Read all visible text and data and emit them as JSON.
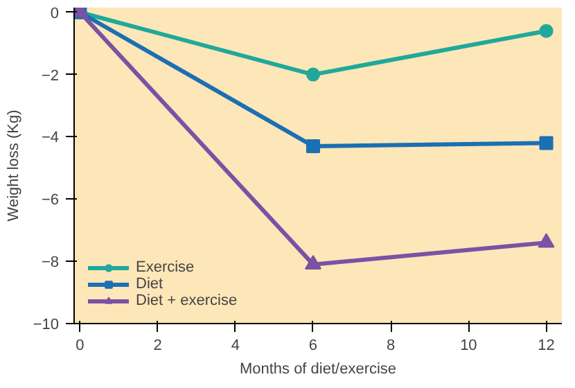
{
  "chart_data": {
    "type": "line",
    "xlabel": "Months of diet/exercise",
    "ylabel": "Weight loss (Kg)",
    "x": [
      0,
      6,
      12
    ],
    "series": [
      {
        "name": "Exercise",
        "color": "#20a89a",
        "values": [
          0,
          -2,
          -0.6
        ],
        "marker": "circle"
      },
      {
        "name": "Diet",
        "color": "#1b6fb3",
        "values": [
          0,
          -4.3,
          -4.2
        ],
        "marker": "square"
      },
      {
        "name": "Diet + exercise",
        "color": "#7a52a3",
        "values": [
          0,
          -8.1,
          -7.4
        ],
        "marker": "triangle"
      }
    ],
    "xlim": [
      -0.15,
      12.4
    ],
    "ylim": [
      -10,
      0.15
    ],
    "xticks": [
      0,
      2,
      4,
      6,
      8,
      10,
      12
    ],
    "yticks": [
      {
        "value": 0,
        "label": "0"
      },
      {
        "value": -2,
        "label": "−2"
      },
      {
        "value": -4,
        "label": "−4"
      },
      {
        "value": -6,
        "label": "−6"
      },
      {
        "value": -8,
        "label": "−8"
      },
      {
        "value": -10,
        "label": "−10"
      }
    ],
    "grid": false,
    "legend": "bottom left"
  }
}
